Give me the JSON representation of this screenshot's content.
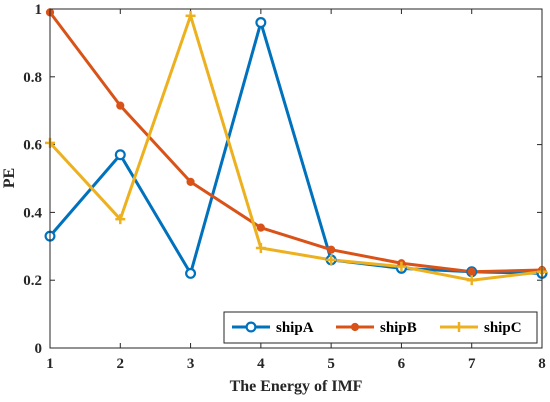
{
  "chart_data": {
    "type": "line",
    "title": "",
    "xlabel": "The Energy of IMF",
    "ylabel": "PE",
    "x": [
      1,
      2,
      3,
      4,
      5,
      6,
      7,
      8
    ],
    "xlim": [
      1,
      8
    ],
    "ylim": [
      0,
      1
    ],
    "xticks": [
      1,
      2,
      3,
      4,
      5,
      6,
      7,
      8
    ],
    "yticks": [
      0,
      0.2,
      0.4,
      0.6,
      0.8,
      1
    ],
    "ytick_labels": [
      "0",
      "0.2",
      "0.4",
      "0.6",
      "0.8",
      "1"
    ],
    "grid": false,
    "legend_position": "bottom-right",
    "legend_orientation": "horizontal",
    "series": [
      {
        "name": "shipA",
        "color": "#0072BD",
        "marker": "circle",
        "values": [
          0.33,
          0.57,
          0.22,
          0.96,
          0.26,
          0.235,
          0.225,
          0.22
        ]
      },
      {
        "name": "shipB",
        "color": "#D95319",
        "marker": "filled-circle",
        "values": [
          0.99,
          0.715,
          0.49,
          0.355,
          0.29,
          0.25,
          0.225,
          0.23
        ]
      },
      {
        "name": "shipC",
        "color": "#EDB120",
        "marker": "plus",
        "values": [
          0.605,
          0.38,
          0.98,
          0.295,
          0.26,
          0.24,
          0.2,
          0.225
        ]
      }
    ]
  }
}
